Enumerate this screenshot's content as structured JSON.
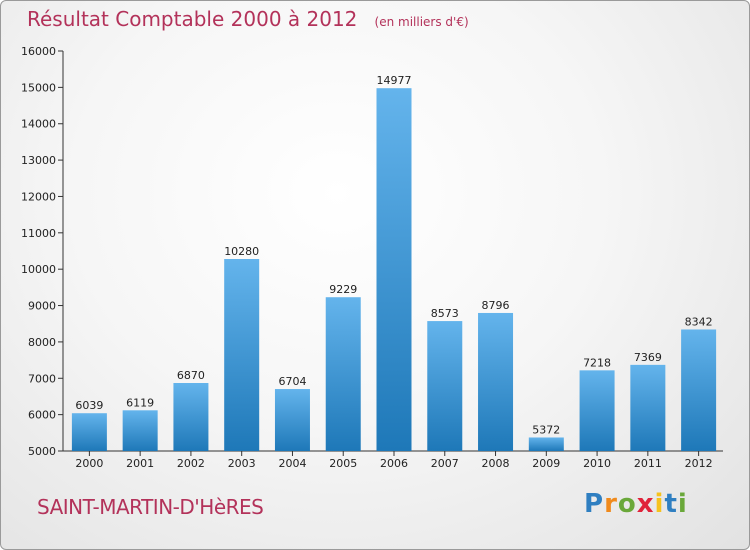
{
  "title": "Résultat Comptable 2000 à 2012",
  "unit": "(en milliers d'€)",
  "place_name": "SAINT-MARTIN-D'HèRES",
  "logo": {
    "text": [
      "P",
      "r",
      "o",
      "x",
      "i",
      "t",
      "i"
    ],
    "colors": [
      "#2f7fc1",
      "#f08a1c",
      "#6aa83a",
      "#e0233a",
      "#f6c21d",
      "#2f7fc1",
      "#6aa83a"
    ]
  },
  "colors": {
    "bar_light": "#64b4ec",
    "bar_dark": "#1e78b8",
    "title": "#b3325a"
  },
  "chart_data": {
    "type": "bar",
    "title": "Résultat Comptable 2000 à 2012",
    "categories": [
      "2000",
      "2001",
      "2002",
      "2003",
      "2004",
      "2005",
      "2006",
      "2007",
      "2008",
      "2009",
      "2010",
      "2011",
      "2012"
    ],
    "values": [
      6039,
      6119,
      6870,
      10280,
      6704,
      9229,
      14977,
      8573,
      8796,
      5372,
      7218,
      7369,
      8342
    ],
    "ylim": [
      5000,
      16000
    ],
    "yticks": [
      5000,
      6000,
      7000,
      8000,
      9000,
      10000,
      11000,
      12000,
      13000,
      14000,
      15000,
      16000
    ],
    "grid": false,
    "legend": "none"
  }
}
